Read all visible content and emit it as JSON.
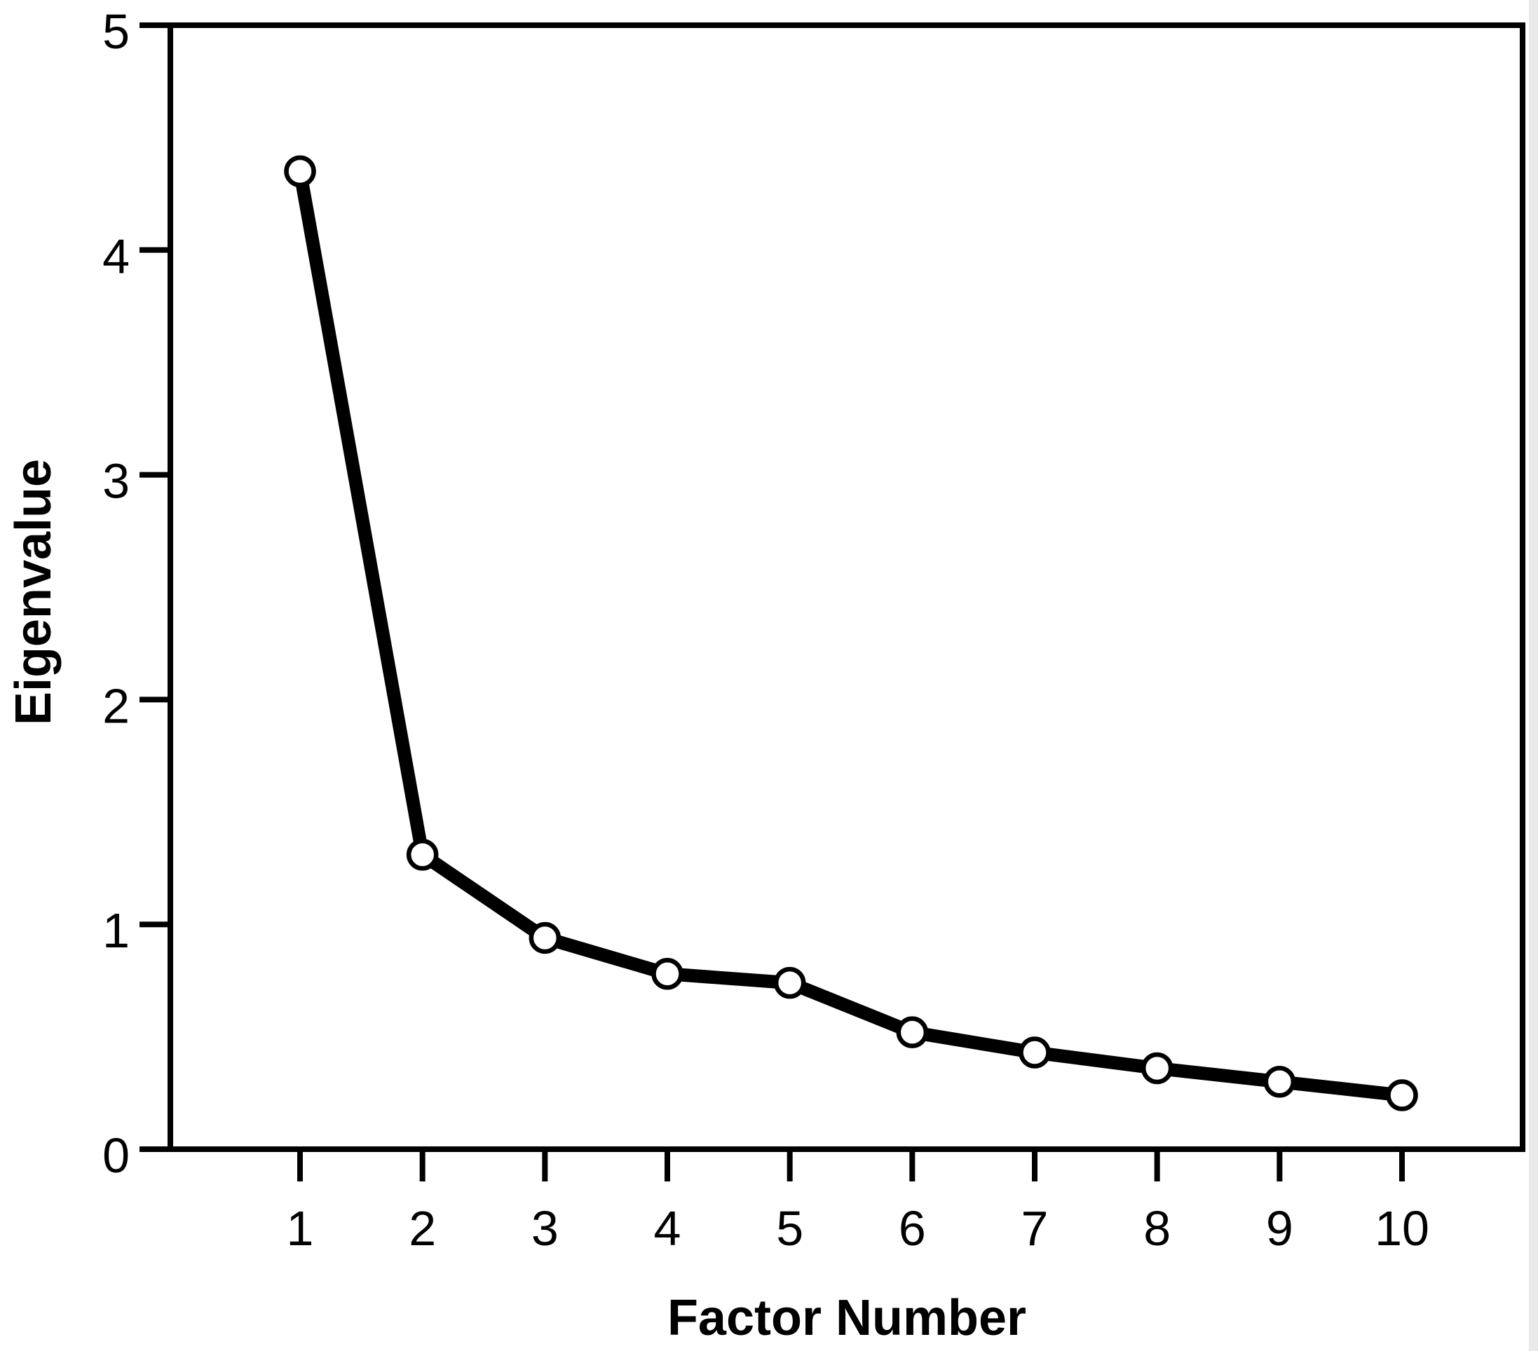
{
  "page": {
    "background": "#ffffff",
    "edge_artifact_color": "#e9e9e9"
  },
  "chart_data": {
    "type": "line",
    "title": "",
    "xlabel": "Factor Number",
    "ylabel": "Eigenvalue",
    "x": [
      1,
      2,
      3,
      4,
      5,
      6,
      7,
      8,
      9,
      10
    ],
    "values": [
      4.35,
      1.31,
      0.94,
      0.78,
      0.74,
      0.52,
      0.43,
      0.36,
      0.3,
      0.24
    ],
    "xticks": [
      "1",
      "2",
      "3",
      "4",
      "5",
      "6",
      "7",
      "8",
      "9",
      "10"
    ],
    "yticks": [
      "0",
      "1",
      "2",
      "3",
      "4",
      "5"
    ],
    "xlim": [
      1,
      10
    ],
    "ylim": [
      0,
      5
    ],
    "grid": false,
    "legend_position": "none",
    "marker": "open-circle",
    "line_color": "#000000",
    "marker_fill": "#ffffff",
    "marker_stroke": "#000000",
    "axis_color": "#000000",
    "text_color": "#000000"
  }
}
